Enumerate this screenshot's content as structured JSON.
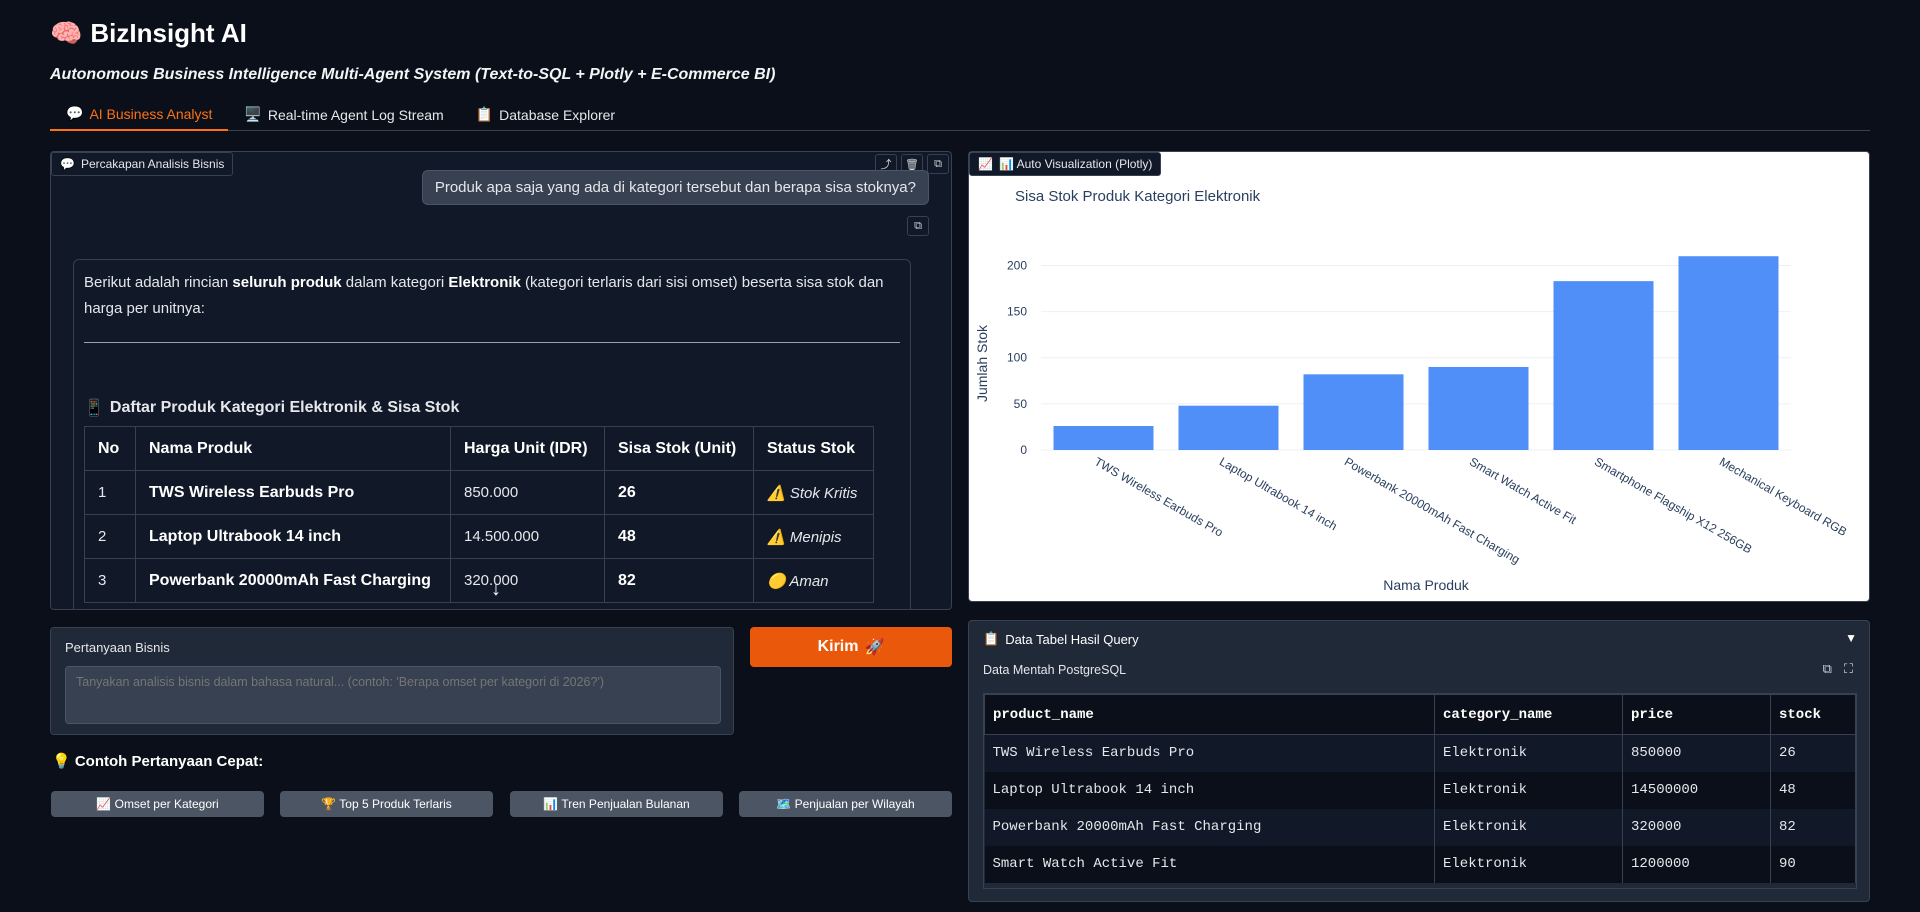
{
  "header": {
    "icon": "🧠",
    "title": "BizInsight AI",
    "subtitle": "Autonomous Business Intelligence Multi-Agent System (Text-to-SQL + Plotly + E-Commerce BI)"
  },
  "tabs": [
    {
      "icon": "💬",
      "label": "AI Business Analyst"
    },
    {
      "icon": "🖥️",
      "label": "Real-time Agent Log Stream"
    },
    {
      "icon": "📋",
      "label": "Database Explorer"
    }
  ],
  "chat": {
    "label": "Percakapan Analisis Bisnis",
    "user_message": "Produk apa saja yang ada di kategori tersebut dan berapa sisa stoknya?",
    "bot_intro_1": "Berikut adalah rincian ",
    "bot_intro_b1": "seluruh produk",
    "bot_intro_2": " dalam kategori ",
    "bot_intro_b2": "Elektronik",
    "bot_intro_3": " (kategori terlaris dari sisi omset) beserta sisa stok dan harga per unitnya:",
    "table_title": "Daftar Produk Kategori Elektronik & Sisa Stok",
    "table_headers": [
      "No",
      "Nama Produk",
      "Harga Unit (IDR)",
      "Sisa Stok (Unit)",
      "Status Stok"
    ],
    "rows": [
      {
        "no": "1",
        "name": "TWS Wireless Earbuds Pro",
        "price": "850.000",
        "stock": "26",
        "status_icon": "⚠️",
        "status": "Stok Kritis"
      },
      {
        "no": "2",
        "name": "Laptop Ultrabook 14 inch",
        "price": "14.500.000",
        "stock": "48",
        "status_icon": "⚠️",
        "status": "Menipis"
      },
      {
        "no": "3",
        "name": "Powerbank 20000mAh Fast Charging",
        "price": "320.000",
        "stock": "82",
        "status_icon": "🟡",
        "status": "Aman"
      }
    ]
  },
  "question": {
    "label": "Pertanyaan Bisnis",
    "placeholder": "Tanyakan analisis bisnis dalam bahasa natural... (contoh: 'Berapa omset per kategori di 2026?')"
  },
  "send_button": {
    "label": "Kirim",
    "icon": "🚀"
  },
  "quick": {
    "title": "💡 Contoh Pertanyaan Cepat:",
    "items": [
      "📈 Omset per Kategori",
      "🏆 Top 5 Produk Terlaris",
      "📊 Tren Penjualan Bulanan",
      "🗺️ Penjualan per Wilayah"
    ]
  },
  "viz": {
    "label": "📊 Auto Visualization (Plotly)"
  },
  "chart_data": {
    "type": "bar",
    "title": "Sisa Stok Produk Kategori Elektronik",
    "xlabel": "Nama Produk",
    "ylabel": "Jumlah Stok",
    "categories": [
      "TWS Wireless Earbuds Pro",
      "Laptop Ultrabook 14 inch",
      "Powerbank 20000mAh Fast Charging",
      "Smart Watch Active Fit",
      "Smartphone Flagship X12 256GB",
      "Mechanical Keyboard RGB"
    ],
    "values": [
      26,
      48,
      82,
      90,
      183,
      210
    ],
    "ylim": [
      0,
      220
    ],
    "yticks": [
      0,
      50,
      100,
      150,
      200
    ],
    "color": "#4f8ff7",
    "grid": true
  },
  "data_table": {
    "title": "Data Tabel Hasil Query",
    "subtitle": "Data Mentah PostgreSQL",
    "headers": [
      "product_name",
      "category_name",
      "price",
      "stock"
    ],
    "rows": [
      [
        "TWS Wireless Earbuds Pro",
        "Elektronik",
        "850000",
        "26"
      ],
      [
        "Laptop Ultrabook 14 inch",
        "Elektronik",
        "14500000",
        "48"
      ],
      [
        "Powerbank 20000mAh Fast Charging",
        "Elektronik",
        "320000",
        "82"
      ],
      [
        "Smart Watch Active Fit",
        "Elektronik",
        "1200000",
        "90"
      ]
    ]
  }
}
